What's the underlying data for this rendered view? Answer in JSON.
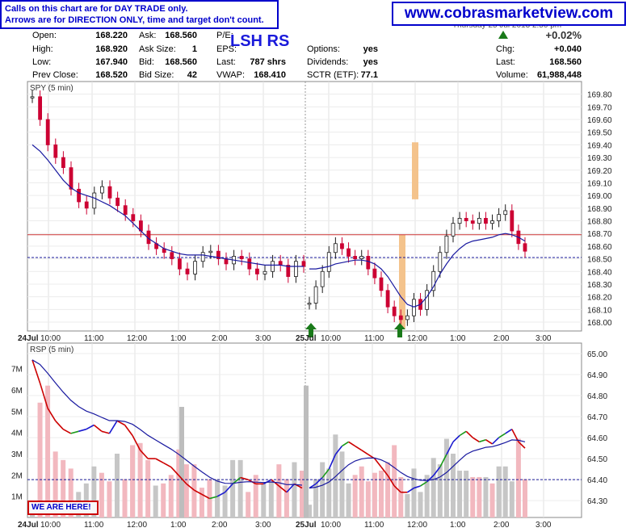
{
  "header": {
    "note_line1": "Calls on this chart are for DAY TRADE only.",
    "note_line2": "Arrows are for DIRECTION ONLY, time and target don't count.",
    "website": "www.cobrasmarketview.com",
    "date_text": "Thursday 25 Jul 2013 2:50 pm",
    "symbol": "LSH RS",
    "change_pct": "+0.02%"
  },
  "quote": {
    "open_label": "Open:",
    "open": "168.220",
    "high_label": "High:",
    "high": "168.920",
    "low_label": "Low:",
    "low": "167.940",
    "prev_label": "Prev Close:",
    "prev": "168.520",
    "ask_label": "Ask:",
    "ask": "168.560",
    "asksize_label": "Ask Size:",
    "asksize": "1",
    "bid_label": "Bid:",
    "bid": "168.560",
    "bidsize_label": "Bid Size:",
    "bidsize": "42",
    "pe_label": "P/E:",
    "pe": "",
    "eps_label": "EPS:",
    "eps": "",
    "last_vol_label": "Last:",
    "last_vol": "787 shrs",
    "vwap_label": "VWAP:",
    "vwap": "168.410",
    "options_label": "Options:",
    "options": "yes",
    "div_label": "Dividends:",
    "div": "yes",
    "sctr_label": "SCTR (ETF):",
    "sctr": "77.1",
    "chg_label": "Chg:",
    "chg": "+0.040",
    "last_label": "Last:",
    "last": "168.560",
    "volume_label": "Volume:",
    "volume": "61,988,448"
  },
  "annotation": {
    "we_are_here": "WE ARE HERE!"
  },
  "colors": {
    "up": "#1a1a1a",
    "down": "#cc0033",
    "ma": "#1a1aa0",
    "pivot": "#cc3333",
    "support": "#1a1a99",
    "arrow": "#1a7a1a",
    "highlight": "#f4c38c"
  },
  "chart_data": [
    {
      "type": "candlestick",
      "title": "SPY (5 min)",
      "xlabel": "",
      "ylabel": "",
      "x_ticks": [
        "24Jul",
        "10:00",
        "11:00",
        "12:00",
        "1:00",
        "2:00",
        "3:00",
        "25Jul",
        "10:00",
        "11:00",
        "12:00",
        "1:00",
        "2:00",
        "3:00"
      ],
      "y_ticks": [
        168.0,
        168.1,
        168.2,
        168.3,
        168.4,
        168.5,
        168.6,
        168.7,
        168.8,
        168.9,
        169.0,
        169.1,
        169.2,
        169.3,
        169.4,
        169.5,
        169.6,
        169.7,
        169.8
      ],
      "ylim": [
        167.93,
        169.9
      ],
      "x_day_break": "25Jul",
      "trend_price_day1": [
        169.78,
        169.6,
        169.4,
        169.3,
        169.22,
        169.05,
        168.95,
        168.9,
        169.02,
        169.07,
        168.98,
        168.92,
        168.85,
        168.8,
        168.72,
        168.62,
        168.58,
        168.55,
        168.5,
        168.42,
        168.38,
        168.48,
        168.55,
        168.56,
        168.5,
        168.46,
        168.52,
        168.5,
        168.42,
        168.38,
        168.4,
        168.48,
        168.45,
        168.36,
        168.48,
        168.44
      ],
      "trend_price_day2": [
        168.15,
        168.28,
        168.4,
        168.55,
        168.62,
        168.58,
        168.52,
        168.5,
        168.52,
        168.42,
        168.35,
        168.25,
        168.12,
        168.05,
        168.02,
        168.05,
        168.18,
        168.1,
        168.25,
        168.4,
        168.55,
        168.68,
        168.78,
        168.82,
        168.8,
        168.78,
        168.82,
        168.78,
        168.8,
        168.85,
        168.88,
        168.72,
        168.62,
        168.56
      ],
      "moving_average_day1": [
        169.4,
        169.35,
        169.28,
        169.2,
        169.12,
        169.06,
        169.02,
        169.0,
        168.98,
        168.95,
        168.92,
        168.88,
        168.84,
        168.78,
        168.72,
        168.66,
        168.62,
        168.58,
        168.56,
        168.54,
        168.53,
        168.53,
        168.53,
        168.52,
        168.51,
        168.5,
        168.49,
        168.48,
        168.47,
        168.46,
        168.45,
        168.45,
        168.45,
        168.44,
        168.44,
        168.44
      ],
      "moving_average_day2": [
        168.42,
        168.42,
        168.43,
        168.44,
        168.46,
        168.47,
        168.48,
        168.49,
        168.49,
        168.48,
        168.46,
        168.42,
        168.36,
        168.28,
        168.2,
        168.14,
        168.12,
        168.14,
        168.2,
        168.28,
        168.38,
        168.46,
        168.53,
        168.58,
        168.62,
        168.64,
        168.65,
        168.66,
        168.67,
        168.69,
        168.7,
        168.69,
        168.67,
        168.64
      ],
      "pivot_line": 168.69,
      "support_line": 168.51,
      "highlight_bars": [
        {
          "time": "12:05",
          "low": 168.97,
          "high": 169.42
        },
        {
          "time": "11:55",
          "low": 167.95,
          "high": 168.69
        }
      ],
      "arrows": [
        {
          "time": "25Jul 9:35",
          "direction": "up"
        },
        {
          "time": "25Jul 11:40",
          "direction": "up"
        }
      ]
    },
    {
      "type": "line",
      "title": "RSP (5 min)",
      "x_ticks": [
        "24Jul",
        "10:00",
        "11:00",
        "12:00",
        "1:00",
        "2:00",
        "3:00",
        "25Jul",
        "10:00",
        "11:00",
        "12:00",
        "1:00",
        "2:00",
        "3:00"
      ],
      "y_ticks": [
        64.3,
        64.4,
        64.5,
        64.6,
        64.7,
        64.8,
        64.9,
        65.0
      ],
      "ylim": [
        64.22,
        65.05
      ],
      "volume_ticks": [
        "1M",
        "2M",
        "3M",
        "4M",
        "5M",
        "6M",
        "7M"
      ],
      "volume_ylim_millions": [
        0,
        8.2
      ],
      "rsp_price_day1": [
        64.97,
        64.86,
        64.74,
        64.68,
        64.64,
        64.62,
        64.63,
        64.64,
        64.66,
        64.63,
        64.62,
        64.68,
        64.66,
        64.61,
        64.54,
        64.5,
        64.5,
        64.48,
        64.46,
        64.42,
        64.38,
        64.35,
        64.33,
        64.31,
        64.32,
        64.34,
        64.38,
        64.41,
        64.4,
        64.38,
        64.38,
        64.4,
        64.37,
        64.34,
        64.38,
        64.36
      ],
      "rsp_price_day2": [
        64.36,
        64.38,
        64.41,
        64.45,
        64.52,
        64.56,
        64.58,
        64.56,
        64.54,
        64.52,
        64.5,
        64.46,
        64.42,
        64.37,
        64.34,
        64.34,
        64.36,
        64.37,
        64.39,
        64.42,
        64.46,
        64.52,
        64.58,
        64.61,
        64.63,
        64.6,
        64.58,
        64.59,
        64.57,
        64.6,
        64.62,
        64.64,
        64.58,
        64.55
      ],
      "support_line": 64.4,
      "day_break_volume_millions": [
        2.6,
        6.2
      ]
    }
  ]
}
